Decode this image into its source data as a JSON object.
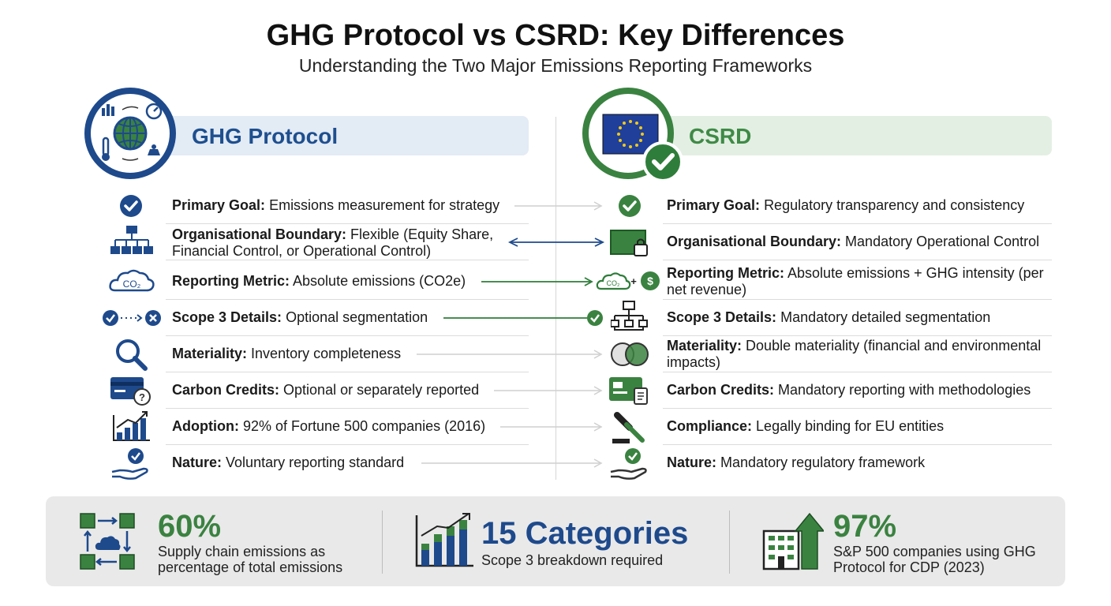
{
  "header": {
    "title": "GHG Protocol vs CSRD: Key Differences",
    "subtitle": "Understanding the Two Major Emissions Reporting Frameworks"
  },
  "columns": {
    "left": {
      "name": "GHG Protocol",
      "badge_icon": "globe-metrics-icon",
      "color": "#1e4a8c"
    },
    "right": {
      "name": "CSRD",
      "badge_icon": "eu-flag-check-icon",
      "color": "#3a8240"
    }
  },
  "rows": [
    {
      "left_term": "Primary Goal:",
      "left_value": "Emissions measurement for strategy",
      "right_term": "Primary Goal:",
      "right_value": "Regulatory transparency and consistency",
      "left_icon": "check-circle-icon",
      "right_icon": "check-circle-icon"
    },
    {
      "left_term": "Organisational Boundary:",
      "left_value": "Flexible (Equity Share, Financial Control, or Operational Control)",
      "right_term": "Organisational Boundary:",
      "right_value": "Mandatory Operational Control",
      "left_icon": "org-chart-icon",
      "right_icon": "locked-folder-icon"
    },
    {
      "left_term": "Reporting Metric:",
      "left_value": "Absolute emissions (CO2e)",
      "right_term": "Reporting Metric:",
      "right_value": "Absolute emissions + GHG intensity (per net revenue)",
      "left_icon": "co2-cloud-icon",
      "right_icon": "co2-plus-dollar-icon",
      "left_icon_text": "CO₂",
      "right_icon_text": "CO₂",
      "right_icon_plus": "+",
      "right_icon_dollar": "$"
    },
    {
      "left_term": "Scope 3 Details:",
      "left_value": "Optional segmentation",
      "right_term": "Scope 3 Details:",
      "right_value": "Mandatory detailed segmentation",
      "left_icon": "check-to-cross-icon",
      "right_icon": "hierarchy-icon"
    },
    {
      "left_term": "Materiality:",
      "left_value": "Inventory completeness",
      "right_term": "Materiality:",
      "right_value": "Double materiality (financial and environmental impacts)",
      "left_icon": "magnifier-icon",
      "right_icon": "venn-circles-icon"
    },
    {
      "left_term": "Carbon Credits:",
      "left_value": "Optional or separately reported",
      "right_term": "Carbon Credits:",
      "right_value": "Mandatory reporting with methodologies",
      "left_icon": "credit-card-question-icon",
      "right_icon": "credit-card-document-icon",
      "left_icon_text": "?"
    },
    {
      "left_term": "Adoption:",
      "left_value": "92% of Fortune 500 companies (2016)",
      "right_term": "Compliance:",
      "right_value": "Legally binding for EU entities",
      "left_icon": "rising-bars-icon",
      "right_icon": "gavel-icon"
    },
    {
      "left_term": "Nature:",
      "left_value": "Voluntary reporting standard",
      "right_term": "Nature:",
      "right_value": "Mandatory regulatory framework",
      "left_icon": "hand-check-icon",
      "right_icon": "hand-check-icon"
    }
  ],
  "stats": [
    {
      "value": "60%",
      "desc": "Supply chain emissions as percentage of total emissions",
      "icon": "supply-chain-cloud-icon",
      "color": "#3a8240"
    },
    {
      "value": "15 Categories",
      "desc": "Scope 3 breakdown required",
      "icon": "growth-bar-chart-icon",
      "color": "#1e4a8c"
    },
    {
      "value": "97%",
      "desc": "S&P 500 companies using GHG Protocol for CDP (2023)",
      "icon": "building-arrow-icon",
      "color": "#3a8240"
    }
  ]
}
